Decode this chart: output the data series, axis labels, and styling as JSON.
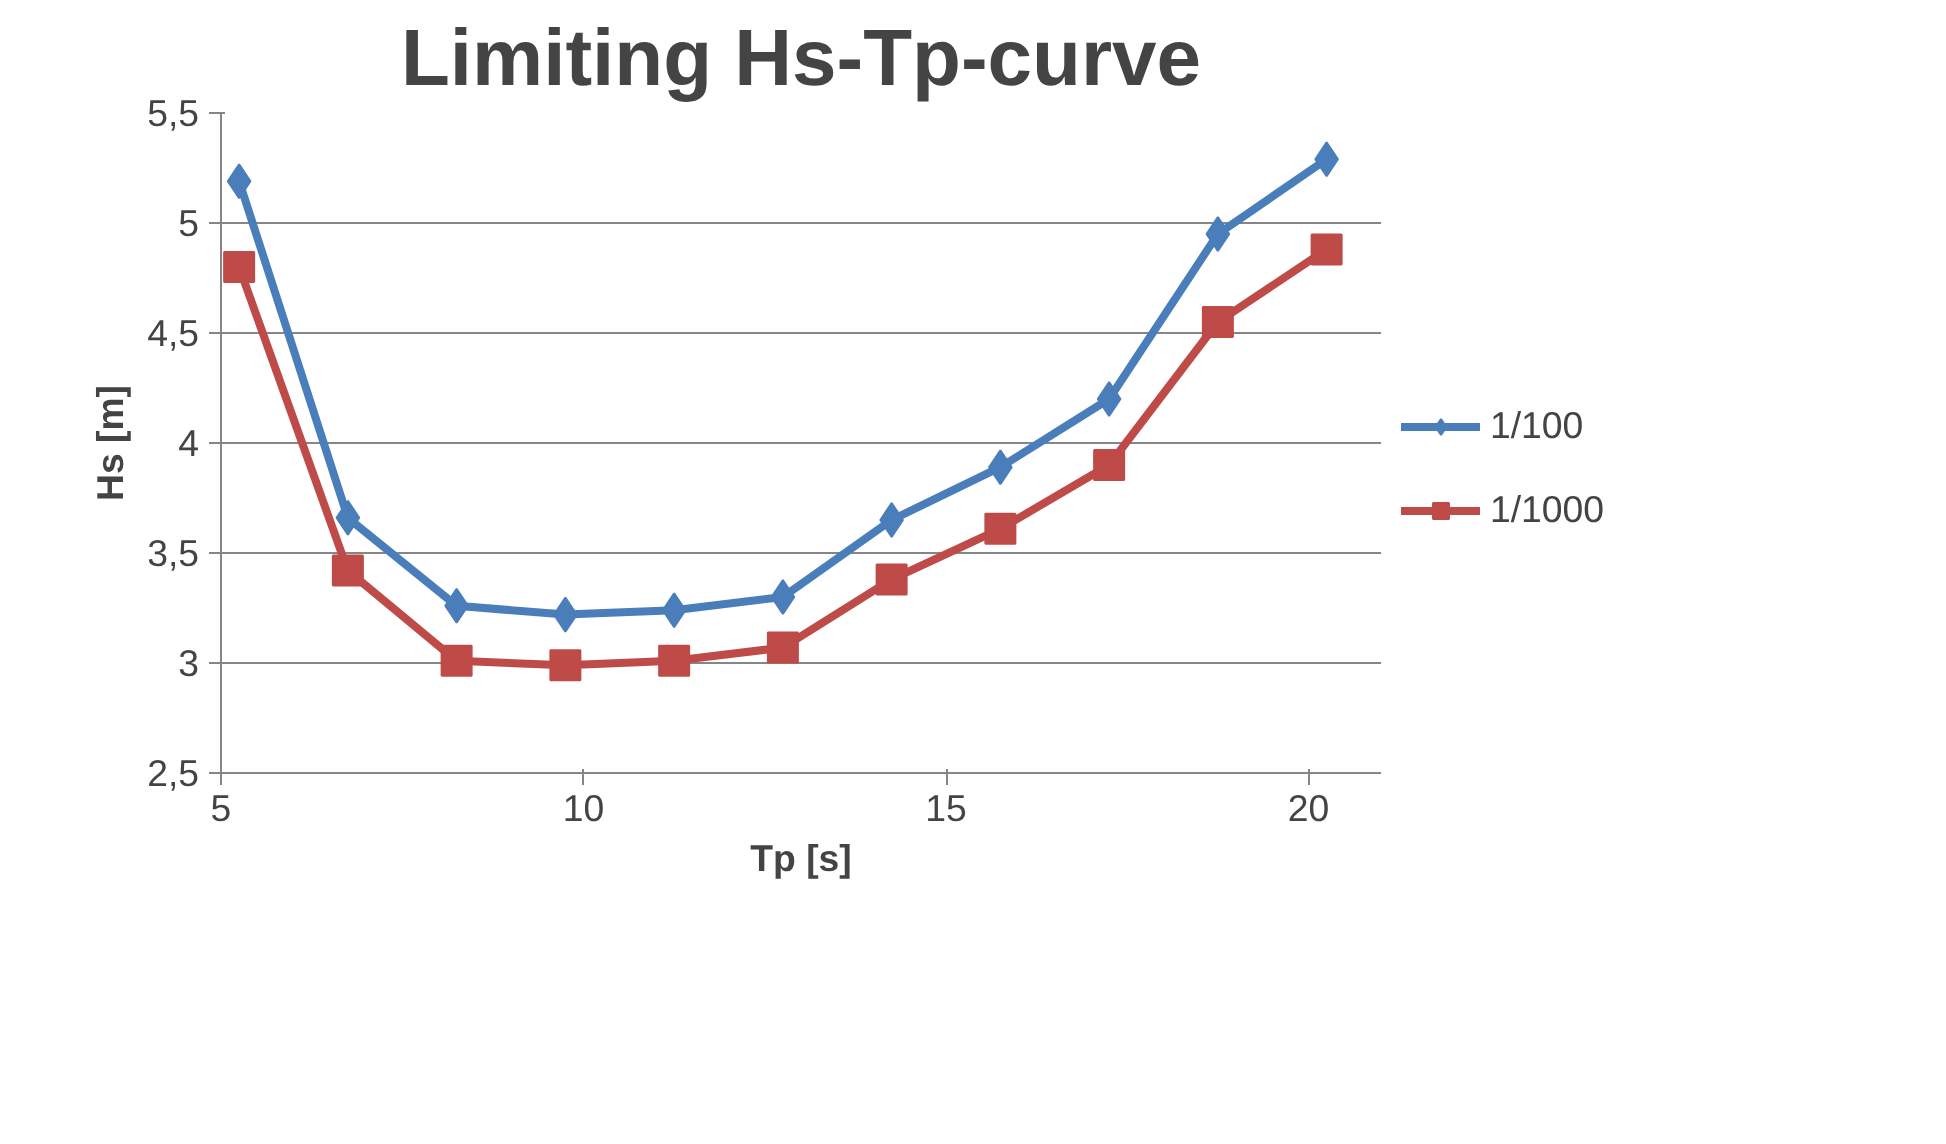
{
  "chart_data": {
    "type": "line",
    "title": "Limiting Hs-Tp-curve",
    "xlabel": "Tp [s]",
    "ylabel": "Hs [m]",
    "x": [
      5.25,
      6.75,
      8.25,
      9.75,
      11.25,
      12.75,
      14.25,
      15.75,
      17.25,
      18.75,
      20.25
    ],
    "series": [
      {
        "name": "1/100",
        "color": "#4a7ebb",
        "marker": "diamond",
        "values": [
          5.19,
          3.66,
          3.26,
          3.22,
          3.24,
          3.3,
          3.65,
          3.89,
          4.2,
          4.95,
          5.29
        ]
      },
      {
        "name": "1/1000",
        "color": "#be4b48",
        "marker": "square",
        "values": [
          4.8,
          3.42,
          3.01,
          2.99,
          3.01,
          3.07,
          3.38,
          3.61,
          3.9,
          4.55,
          4.88
        ]
      }
    ],
    "xlim": [
      5,
      21
    ],
    "xticks": [
      5,
      10,
      15,
      20
    ],
    "ylim": [
      2.5,
      5.5
    ],
    "yticks": [
      {
        "value": 2.5,
        "label": "2,5"
      },
      3,
      {
        "value": 3.5,
        "label": "3,5"
      },
      4,
      {
        "value": 4.5,
        "label": "4,5"
      },
      5,
      {
        "value": 5.5,
        "label": "5,5"
      }
    ],
    "grid": "y",
    "legend": "right",
    "line_style": "solid"
  }
}
